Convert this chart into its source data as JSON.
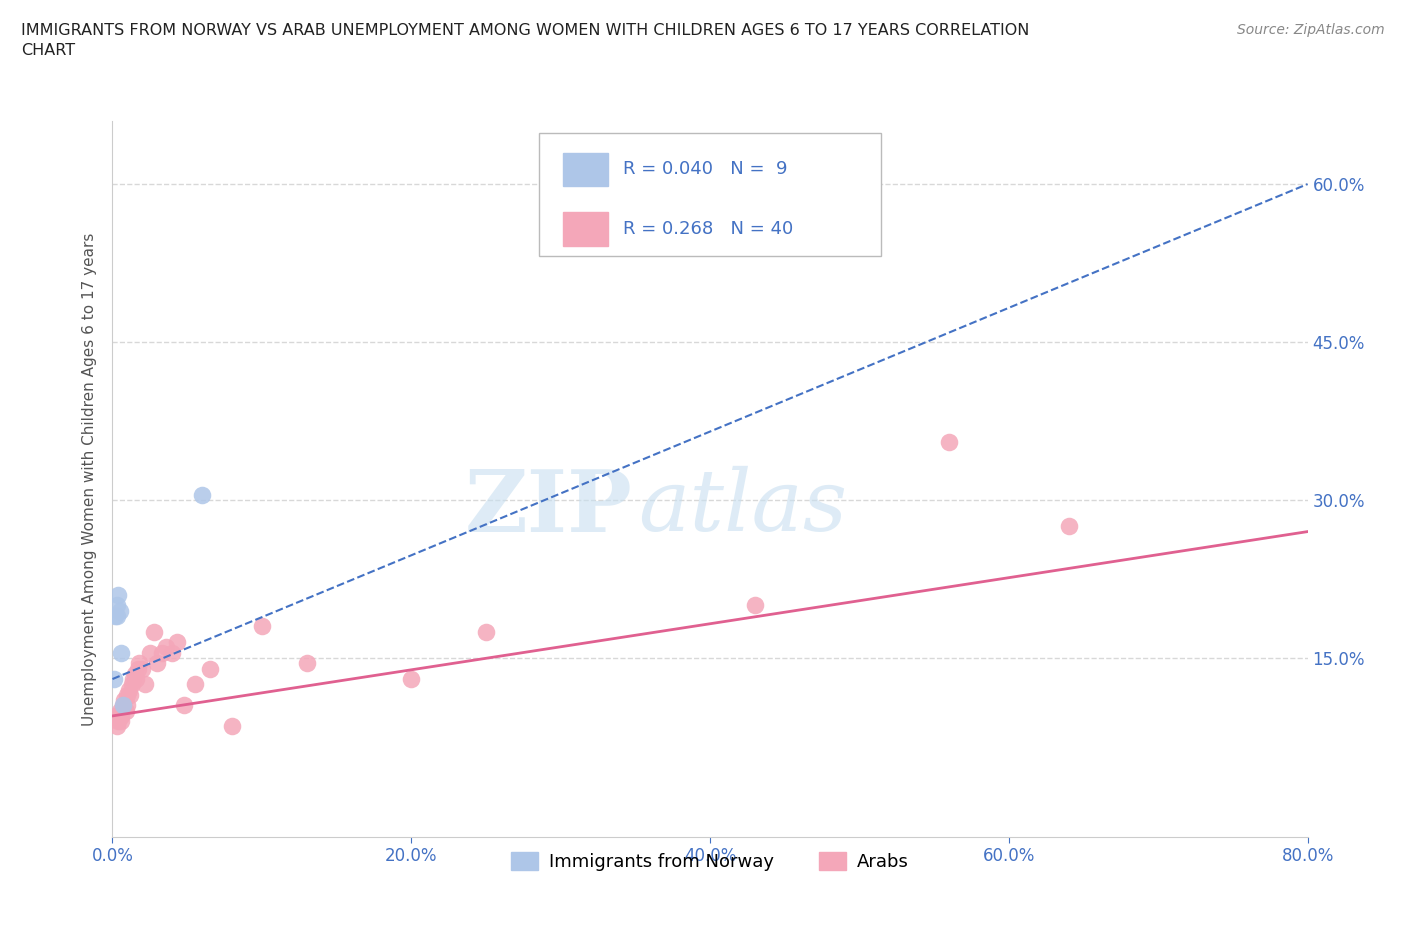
{
  "title": "IMMIGRANTS FROM NORWAY VS ARAB UNEMPLOYMENT AMONG WOMEN WITH CHILDREN AGES 6 TO 17 YEARS CORRELATION\nCHART",
  "source": "Source: ZipAtlas.com",
  "ylabel_label": "Unemployment Among Women with Children Ages 6 to 17 years",
  "xmin": 0.0,
  "xmax": 0.8,
  "ymin": -0.02,
  "ymax": 0.66,
  "xticks": [
    0.0,
    0.2,
    0.4,
    0.6,
    0.8
  ],
  "xtick_labels": [
    "0.0%",
    "20.0%",
    "40.0%",
    "60.0%",
    "80.0%"
  ],
  "yticks": [
    0.15,
    0.3,
    0.45,
    0.6
  ],
  "ytick_labels": [
    "15.0%",
    "30.0%",
    "45.0%",
    "60.0%"
  ],
  "norway_x": [
    0.001,
    0.002,
    0.003,
    0.003,
    0.004,
    0.005,
    0.006,
    0.007,
    0.06
  ],
  "norway_y": [
    0.13,
    0.19,
    0.19,
    0.2,
    0.21,
    0.195,
    0.155,
    0.105,
    0.305
  ],
  "arab_x": [
    0.002,
    0.003,
    0.004,
    0.005,
    0.005,
    0.006,
    0.006,
    0.007,
    0.008,
    0.009,
    0.01,
    0.01,
    0.011,
    0.012,
    0.013,
    0.014,
    0.015,
    0.016,
    0.017,
    0.018,
    0.02,
    0.022,
    0.025,
    0.028,
    0.03,
    0.033,
    0.036,
    0.04,
    0.043,
    0.048,
    0.055,
    0.065,
    0.08,
    0.1,
    0.13,
    0.2,
    0.25,
    0.43,
    0.56,
    0.64
  ],
  "arab_y": [
    0.095,
    0.085,
    0.09,
    0.095,
    0.1,
    0.09,
    0.095,
    0.105,
    0.11,
    0.1,
    0.105,
    0.115,
    0.12,
    0.115,
    0.125,
    0.13,
    0.135,
    0.13,
    0.14,
    0.145,
    0.14,
    0.125,
    0.155,
    0.175,
    0.145,
    0.155,
    0.16,
    0.155,
    0.165,
    0.105,
    0.125,
    0.14,
    0.085,
    0.18,
    0.145,
    0.13,
    0.175,
    0.2,
    0.355,
    0.275
  ],
  "norway_color": "#aec6e8",
  "arab_color": "#f4a7b9",
  "norway_line_color": "#4472c4",
  "arab_line_color": "#e06090",
  "norway_R": 0.04,
  "norway_N": 9,
  "arab_R": 0.268,
  "arab_N": 40,
  "legend_label_norway": "Immigrants from Norway",
  "legend_label_arab": "Arabs",
  "watermark_text": "ZIP",
  "watermark_text2": "atlas",
  "background_color": "#ffffff",
  "grid_color": "#d8d8d8",
  "tick_color": "#4472c4",
  "axis_color": "#cccccc",
  "title_color": "#222222",
  "source_color": "#888888",
  "ylabel_color": "#555555"
}
